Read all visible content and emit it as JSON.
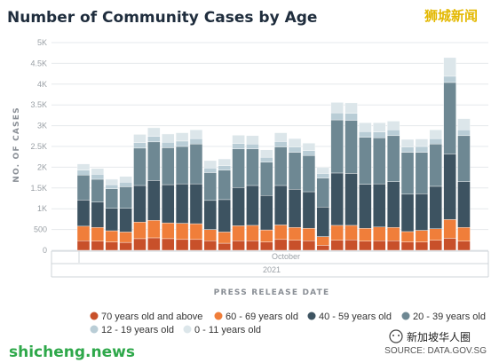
{
  "chart_data": {
    "type": "bar",
    "stacked": true,
    "title": "Number of Community Cases by Age",
    "xlabel": "PRESS RELEASE DATE",
    "ylabel": "NO. OF CASES",
    "x_month_label": "October",
    "x_year_label": "2021",
    "ylim": [
      0,
      5000
    ],
    "y_ticks": [
      "0",
      "500",
      "1K",
      "1.5K",
      "2K",
      "2.5K",
      "3K",
      "3.5K",
      "4K",
      "4.5K",
      "5K"
    ],
    "y_tick_values": [
      0,
      500,
      1000,
      1500,
      2000,
      2500,
      3000,
      3500,
      4000,
      4500,
      5000
    ],
    "grid": true,
    "legend_position": "bottom",
    "series": [
      {
        "name": "70 years old and above",
        "color": "#c8502a",
        "values": [
          230,
          220,
          200,
          190,
          280,
          300,
          280,
          260,
          260,
          230,
          170,
          230,
          230,
          200,
          260,
          240,
          230,
          120,
          240,
          250,
          220,
          230,
          230,
          200,
          200,
          240,
          290,
          220
        ]
      },
      {
        "name": "60 - 69 years old",
        "color": "#f07e3a",
        "values": [
          350,
          330,
          270,
          250,
          400,
          420,
          380,
          390,
          380,
          270,
          270,
          360,
          370,
          290,
          350,
          310,
          300,
          210,
          360,
          350,
          310,
          330,
          320,
          250,
          280,
          280,
          450,
          330
        ]
      },
      {
        "name": "40 - 59 years old",
        "color": "#3d5361",
        "values": [
          630,
          610,
          540,
          570,
          880,
          960,
          920,
          950,
          960,
          700,
          780,
          920,
          960,
          830,
          950,
          920,
          880,
          710,
          1260,
          1250,
          1060,
          1040,
          1100,
          900,
          880,
          1020,
          1580,
          1100
        ]
      },
      {
        "name": "20 - 39 years old",
        "color": "#6e8893",
        "values": [
          600,
          550,
          470,
          520,
          900,
          930,
          890,
          900,
          960,
          670,
          710,
          930,
          880,
          800,
          930,
          890,
          870,
          700,
          1280,
          1280,
          1130,
          1110,
          1110,
          1010,
          1000,
          1020,
          1720,
          1110
        ]
      },
      {
        "name": "12 - 19 years old",
        "color": "#b9cdd6",
        "values": [
          120,
          120,
          100,
          110,
          130,
          130,
          130,
          130,
          130,
          110,
          110,
          130,
          120,
          120,
          130,
          130,
          120,
          110,
          170,
          170,
          140,
          140,
          140,
          130,
          140,
          130,
          150,
          140
        ]
      },
      {
        "name": "0 - 11 years old",
        "color": "#dce6ea",
        "values": [
          150,
          140,
          130,
          140,
          200,
          210,
          200,
          200,
          210,
          180,
          160,
          200,
          200,
          180,
          210,
          200,
          180,
          140,
          250,
          250,
          210,
          220,
          210,
          180,
          180,
          210,
          450,
          270
        ]
      }
    ]
  },
  "watermark_cn": "狮城新闻",
  "watermark_site": "shicheng.news",
  "source": "SOURCE: DATA.GOV.SG",
  "wechat_label": "新加坡华人圈",
  "colors": {
    "title": "#1f2d3d",
    "grid": "#e6e9ec"
  }
}
